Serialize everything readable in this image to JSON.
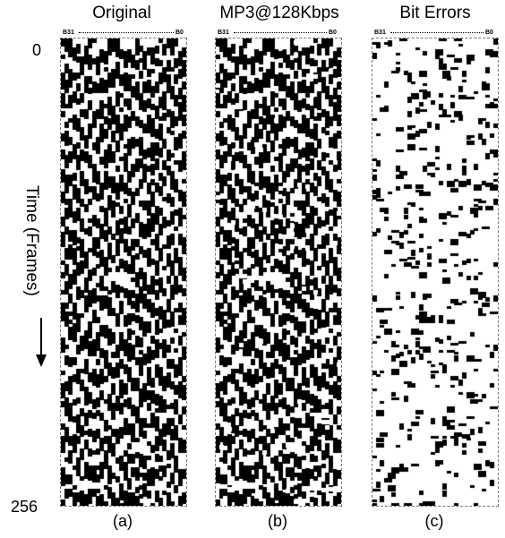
{
  "panels": [
    {
      "title": "Original",
      "label": "(a)",
      "msb": "B31",
      "lsb": "B0",
      "mode": "dense",
      "seed": 11
    },
    {
      "title": "MP3@128Kbps",
      "label": "(b)",
      "msb": "B31",
      "lsb": "B0",
      "mode": "dense",
      "seed": 11
    },
    {
      "title": "Bit Errors",
      "label": "(c)",
      "msb": "B31",
      "lsb": "B0",
      "mode": "sparse",
      "seed": 7
    }
  ],
  "axis": {
    "start": "0",
    "end": "256",
    "label": "Time (Frames)"
  },
  "bits": 32,
  "frames": 256
}
